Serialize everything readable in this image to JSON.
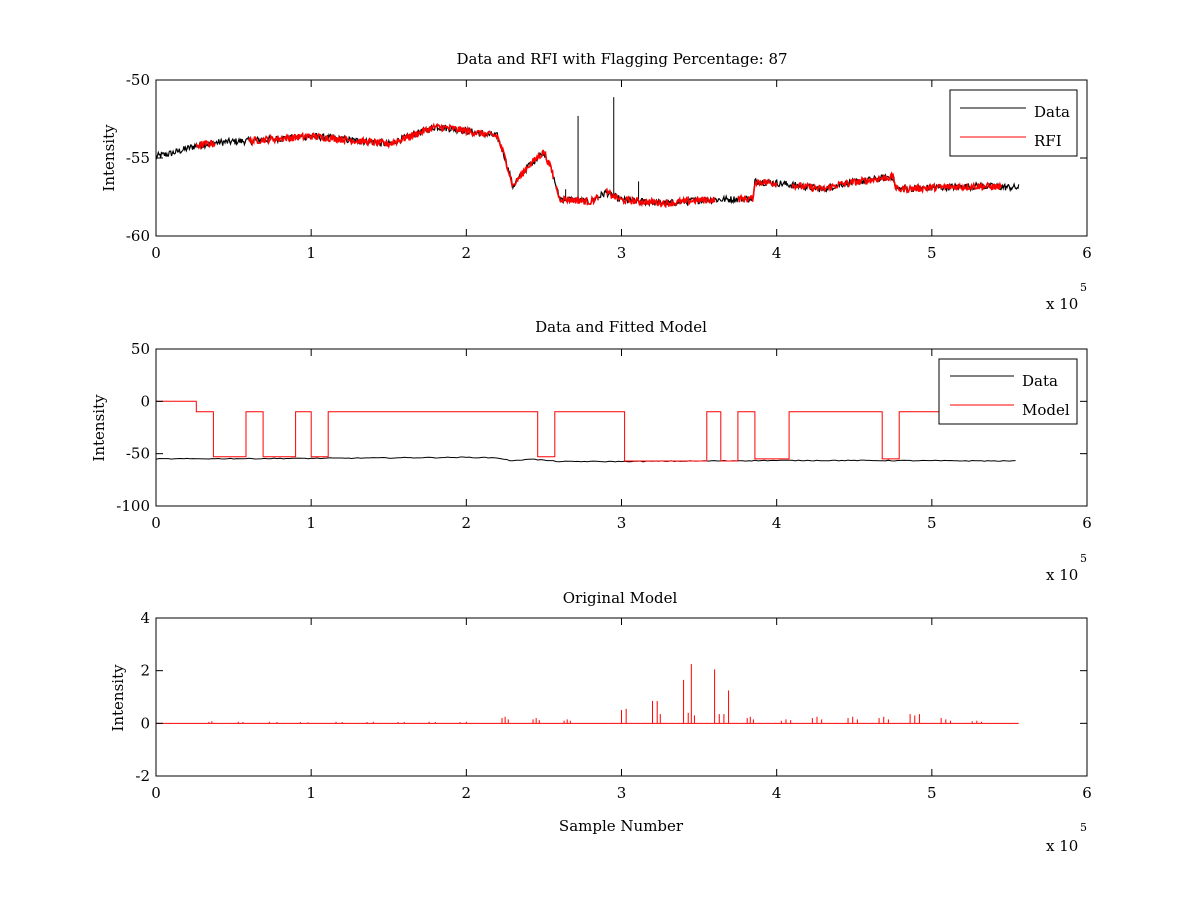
{
  "chart_data": [
    {
      "type": "line",
      "title": "Data and RFI with Flagging Percentage: 87",
      "xlabel": "",
      "ylabel": "Intensity",
      "xlim": [
        0,
        600000
      ],
      "ylim": [
        -60,
        -50
      ],
      "xticks": [
        0,
        100000,
        200000,
        300000,
        400000,
        500000,
        600000
      ],
      "xtick_labels": [
        "0",
        "1",
        "2",
        "3",
        "4",
        "5",
        "6"
      ],
      "yticks": [
        -60,
        -55,
        -50
      ],
      "ytick_labels": [
        "-60",
        "-55",
        "-50"
      ],
      "x_exponent_label": "x 10",
      "x_exponent": "5",
      "grid": false,
      "legend": {
        "position": "top-right",
        "entries": [
          "Data",
          "RFI"
        ]
      },
      "series": [
        {
          "name": "Data",
          "color": "#000000",
          "x": [
            0,
            10000,
            20000,
            26000,
            40000,
            60000,
            100000,
            150000,
            180000,
            190000,
            220000,
            225000,
            230000,
            240000,
            250000,
            255000,
            260000,
            280000,
            290000,
            300000,
            330000,
            350000,
            385000,
            386000,
            400000,
            430000,
            440000,
            475000,
            477000,
            500000,
            530000,
            556000
          ],
          "y": [
            -54.9,
            -54.7,
            -54.4,
            -54.2,
            -54.0,
            -53.9,
            -53.6,
            -54.1,
            -53.0,
            -53.1,
            -53.6,
            -55.0,
            -56.8,
            -55.5,
            -54.6,
            -55.8,
            -57.6,
            -57.8,
            -57.2,
            -57.7,
            -57.9,
            -57.7,
            -57.6,
            -56.5,
            -56.6,
            -57.0,
            -56.7,
            -56.2,
            -57.0,
            -56.9,
            -56.8,
            -56.9
          ]
        },
        {
          "name": "RFI",
          "color": "#ff0000",
          "segments": [
            [
              26000,
              38000
            ],
            [
              60000,
              256000
            ],
            [
              258000,
              285000
            ],
            [
              290000,
              360000
            ],
            [
              375000,
              400000
            ],
            [
              410000,
              545000
            ]
          ]
        }
      ],
      "spikes": [
        {
          "x": 272000,
          "y": -52.3
        },
        {
          "x": 295000,
          "y": -51.1
        },
        {
          "x": 311000,
          "y": -56.5
        },
        {
          "x": 264000,
          "y": -57.0
        }
      ]
    },
    {
      "type": "line",
      "title": "Data and Fitted Model",
      "xlabel": "",
      "ylabel": "Intensity",
      "xlim": [
        0,
        600000
      ],
      "ylim": [
        -100,
        50
      ],
      "xticks": [
        0,
        100000,
        200000,
        300000,
        400000,
        500000,
        600000
      ],
      "xtick_labels": [
        "0",
        "1",
        "2",
        "3",
        "4",
        "5",
        "6"
      ],
      "yticks": [
        -100,
        -50,
        0,
        50
      ],
      "ytick_labels": [
        "-100",
        "-50",
        "0",
        "50"
      ],
      "x_exponent_label": "x 10",
      "x_exponent": "5",
      "grid": false,
      "legend": {
        "position": "top-right",
        "entries": [
          "Data",
          "Model"
        ]
      },
      "series": [
        {
          "name": "Data",
          "color": "#000000",
          "x": [
            0,
            100000,
            200000,
            220000,
            230000,
            240000,
            260000,
            300000,
            400000,
            450000,
            556000
          ],
          "y": [
            -55,
            -54.5,
            -53.5,
            -54.0,
            -57,
            -55,
            -57.5,
            -57.5,
            -56.5,
            -56.5,
            -57
          ]
        },
        {
          "name": "Model",
          "color": "#ff0000",
          "x": [
            0,
            26000,
            26000,
            37000,
            37000,
            58000,
            58000,
            69000,
            69000,
            90000,
            90000,
            100000,
            100000,
            111000,
            111000,
            246000,
            246000,
            257000,
            257000,
            302000,
            302000,
            355000,
            355000,
            364000,
            364000,
            375000,
            375000,
            386000,
            386000,
            408000,
            408000,
            468000,
            468000,
            479000,
            479000,
            556000
          ],
          "y": [
            0,
            0,
            -10,
            -10,
            -53,
            -53,
            -10,
            -10,
            -53,
            -53,
            -10,
            -10,
            -53,
            -53,
            -10,
            -10,
            -53,
            -53,
            -10,
            -10,
            -57,
            -57,
            -10,
            -10,
            -57,
            -57,
            -10,
            -10,
            -55,
            -55,
            -10,
            -10,
            -55,
            -55,
            -10,
            -10
          ]
        }
      ]
    },
    {
      "type": "line",
      "title": "Original Model",
      "xlabel": "Sample Number",
      "ylabel": "Intensity",
      "xlim": [
        0,
        600000
      ],
      "ylim": [
        -2,
        4
      ],
      "xticks": [
        0,
        100000,
        200000,
        300000,
        400000,
        500000,
        600000
      ],
      "xtick_labels": [
        "0",
        "1",
        "2",
        "3",
        "4",
        "5",
        "6"
      ],
      "yticks": [
        -2,
        0,
        2,
        4
      ],
      "ytick_labels": [
        "-2",
        "0",
        "2",
        "4"
      ],
      "x_exponent_label": "x 10",
      "x_exponent": "5",
      "grid": false,
      "series": [
        {
          "name": "",
          "color": "#ff0000",
          "baseline": 0,
          "x_end": 556000,
          "spikes_x": [
            34000,
            36000,
            53000,
            56000,
            73000,
            78000,
            93000,
            98000,
            116000,
            120000,
            136000,
            140000,
            156000,
            160000,
            176000,
            180000,
            196000,
            200000,
            223000,
            225000,
            227000,
            243000,
            245000,
            247000,
            263000,
            265000,
            267000,
            300000,
            303000,
            320000,
            323000,
            325000,
            340000,
            343000,
            345000,
            347000,
            360000,
            363000,
            366000,
            369000,
            381000,
            383000,
            385000,
            403000,
            406000,
            409000,
            423000,
            426000,
            429000,
            446000,
            449000,
            452000,
            466000,
            469000,
            472000,
            486000,
            489000,
            492000,
            506000,
            509000,
            512000,
            526000,
            529000,
            532000
          ],
          "spikes_y": [
            0.05,
            0.08,
            0.06,
            0.05,
            0.06,
            0.05,
            0.05,
            0.04,
            0.06,
            0.05,
            0.05,
            0.06,
            0.05,
            0.05,
            0.06,
            0.05,
            0.05,
            0.06,
            0.2,
            0.25,
            0.15,
            0.15,
            0.2,
            0.12,
            0.1,
            0.15,
            0.1,
            0.5,
            0.55,
            0.85,
            0.85,
            0.35,
            1.65,
            0.4,
            2.25,
            0.3,
            2.05,
            0.35,
            0.35,
            1.25,
            0.2,
            0.25,
            0.15,
            0.1,
            0.15,
            0.12,
            0.2,
            0.25,
            0.15,
            0.2,
            0.25,
            0.15,
            0.2,
            0.25,
            0.15,
            0.35,
            0.3,
            0.35,
            0.2,
            0.15,
            0.1,
            0.08,
            0.1,
            0.06
          ]
        }
      ]
    }
  ]
}
